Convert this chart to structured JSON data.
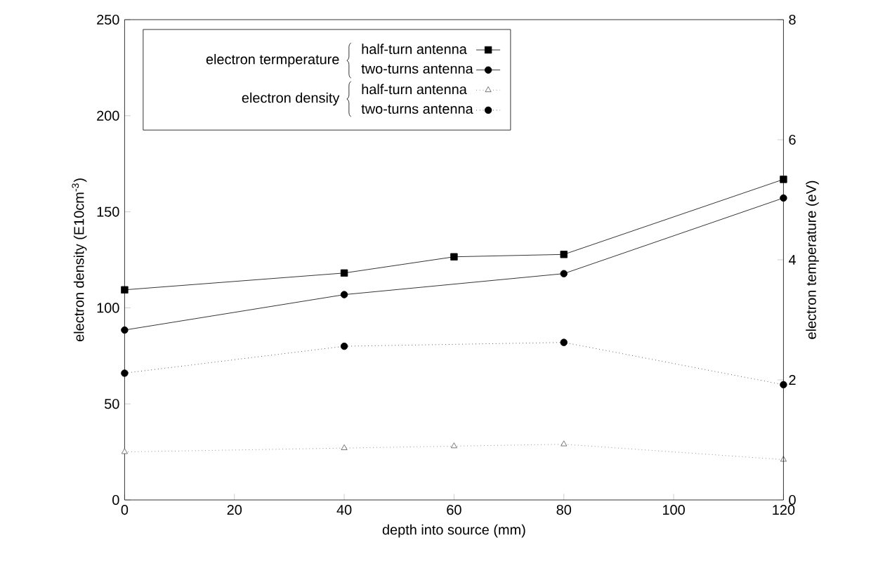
{
  "chart_data": {
    "type": "line",
    "xlabel": "depth into source (mm)",
    "ylabel": "electron density (E10cm$^{-3}$)",
    "y2label": "electron temperature (eV)",
    "xlim": [
      0,
      120
    ],
    "xticks": [
      0,
      20,
      40,
      60,
      80,
      100,
      120
    ],
    "ylim": [
      0,
      250
    ],
    "yticks": [
      0,
      50,
      100,
      150,
      200,
      250
    ],
    "y2lim": [
      0,
      8
    ],
    "y2ticks": [
      0,
      2,
      4,
      6,
      8
    ],
    "legend": "top left",
    "annotations": [
      "electron termperature",
      "electron density"
    ],
    "series": [
      {
        "name": "half-turn antenna",
        "color": "#000000",
        "axis": "y2",
        "marker": "square",
        "line_style": "solid",
        "x": [
          0,
          40,
          60,
          80,
          120
        ],
        "values": [
          3.5,
          3.78,
          4.05,
          4.09,
          5.34
        ]
      },
      {
        "name": "two-turns antenna",
        "color": "#000000",
        "axis": "y2",
        "marker": "circle",
        "line_style": "solid",
        "x": [
          0,
          40,
          80,
          120
        ],
        "values": [
          2.83,
          3.42,
          3.77,
          5.03
        ]
      },
      {
        "name": "half-turn antenna",
        "color": "#555555",
        "axis": "y",
        "marker": "triangle",
        "line_style": "dotted",
        "x": [
          0,
          40,
          60,
          80,
          120
        ],
        "values": [
          25,
          27,
          28,
          29,
          21
        ]
      },
      {
        "name": "two-turns antenna",
        "color": "#000000",
        "axis": "y",
        "marker": "circle",
        "line_style": "dotted",
        "x": [
          0,
          40,
          80,
          120
        ],
        "values": [
          66,
          80,
          82,
          60
        ]
      }
    ]
  }
}
